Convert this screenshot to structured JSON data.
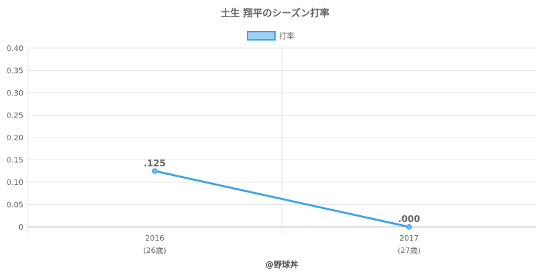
{
  "chart_data": {
    "type": "line",
    "title": "土生 翔平のシーズン打率",
    "legend": {
      "label": "打率",
      "placement": "top-center"
    },
    "categories": [
      {
        "year": "2016",
        "age": "(26歳)"
      },
      {
        "year": "2017",
        "age": "(27歳)"
      }
    ],
    "series": [
      {
        "name": "打率",
        "values": [
          0.125,
          0.0
        ],
        "labels": [
          ".125",
          ".000"
        ]
      }
    ],
    "ylim": [
      0,
      0.4
    ],
    "yticks": [
      "0",
      "0.05",
      "0.10",
      "0.15",
      "0.20",
      "0.25",
      "0.30",
      "0.35",
      "0.40"
    ],
    "grid": true,
    "colors": {
      "line": "#3fa3e4",
      "point": "#6db8ea",
      "legend_fill": "#9fd0f2",
      "grid": "#e5e5e5",
      "axis": "#bbbbbb"
    }
  },
  "credit": "@野球丼"
}
